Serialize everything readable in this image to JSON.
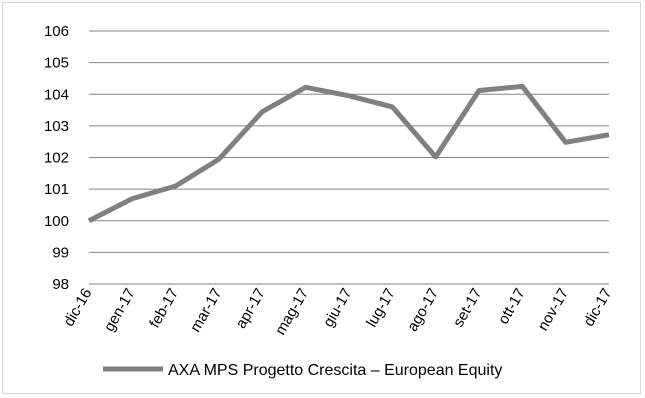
{
  "chart_data": {
    "type": "line",
    "title": "",
    "xlabel": "",
    "ylabel": "",
    "categories": [
      "dic-16",
      "gen-17",
      "feb-17",
      "mar-17",
      "apr-17",
      "mag-17",
      "giu-17",
      "lug-17",
      "ago-17",
      "set-17",
      "ott-17",
      "nov-17",
      "dic-17"
    ],
    "series": [
      {
        "name": "AXA MPS Progetto Crescita – European Equity",
        "values": [
          100.0,
          100.7,
          101.1,
          101.95,
          103.45,
          104.22,
          103.95,
          103.6,
          102.02,
          104.12,
          104.25,
          102.48,
          102.72
        ]
      }
    ],
    "ylim": [
      98,
      106
    ],
    "yticks": [
      98,
      99,
      100,
      101,
      102,
      103,
      104,
      105,
      106
    ],
    "grid": true,
    "legend_position": "bottom",
    "colors": {
      "series": "#808080",
      "grid": "#868686"
    }
  }
}
